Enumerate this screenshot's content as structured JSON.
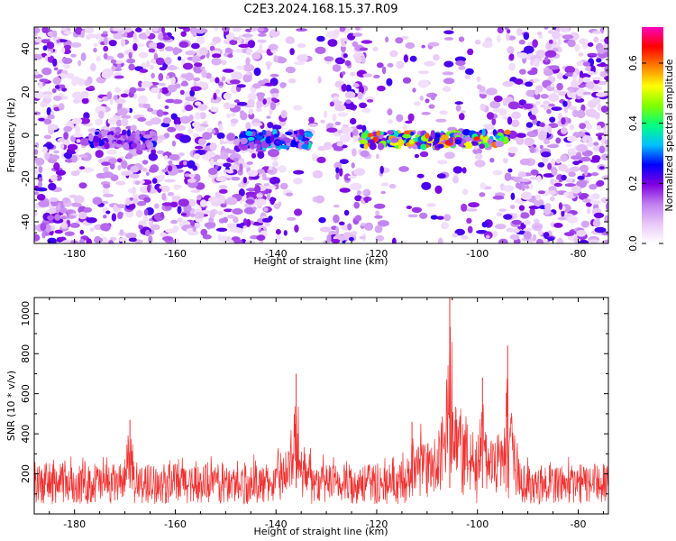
{
  "title": "C2E3.2024.168.15.37.R09",
  "chart_data": [
    {
      "type": "heatmap",
      "name": "spectrogram",
      "xlabel": "Height of straight line (km)",
      "ylabel": "Frequency (Hz)",
      "xlim": [
        -188,
        -74
      ],
      "ylim": [
        -50,
        50
      ],
      "xticks": [
        -180,
        -160,
        -140,
        -120,
        -100,
        -80
      ],
      "yticks": [
        -40,
        -20,
        0,
        20,
        40
      ],
      "colorbar": {
        "label": "Normalized spectral amplitude",
        "range": [
          0,
          0.72
        ],
        "ticks": [
          0.0,
          0.2,
          0.4,
          0.6
        ],
        "tick_labels": [
          "0.0",
          "0.2",
          "0.4",
          "0.6"
        ],
        "colormap": [
          "#ffffff",
          "#e8c8f8",
          "#c080f0",
          "#8000e0",
          "#0000ff",
          "#00c0ff",
          "#00ff80",
          "#80ff00",
          "#ffff00",
          "#ff8000",
          "#ff0000",
          "#ff00c0"
        ]
      },
      "signal_band": {
        "frequency_hz": -2,
        "segments": [
          {
            "x_start": -177,
            "x_end": -164,
            "peak": 0.25
          },
          {
            "x_start": -147,
            "x_end": -133,
            "peak": 0.35
          },
          {
            "x_start": -123,
            "x_end": -94,
            "peak": 0.62
          }
        ]
      },
      "low_noise_regions": [
        {
          "x_start": -139,
          "x_end": -129
        },
        {
          "x_start": -122,
          "x_end": -94
        }
      ]
    },
    {
      "type": "line",
      "name": "snr",
      "xlabel": "Height of straight line (km)",
      "ylabel": "SNR (10 * v/v)",
      "xlim": [
        -188,
        -74
      ],
      "ylim": [
        0,
        1080
      ],
      "xticks": [
        -180,
        -160,
        -140,
        -120,
        -100,
        -80
      ],
      "yticks": [
        200,
        400,
        600,
        800,
        1000
      ],
      "line_color": "#f03030",
      "baseline_range": [
        50,
        300
      ],
      "peaks": [
        {
          "x": -169,
          "y": 470
        },
        {
          "x": -136,
          "y": 700
        },
        {
          "x": -113,
          "y": 460
        },
        {
          "x": -105.5,
          "y": 1080
        },
        {
          "x": -99,
          "y": 680
        },
        {
          "x": -94,
          "y": 840
        }
      ]
    }
  ]
}
